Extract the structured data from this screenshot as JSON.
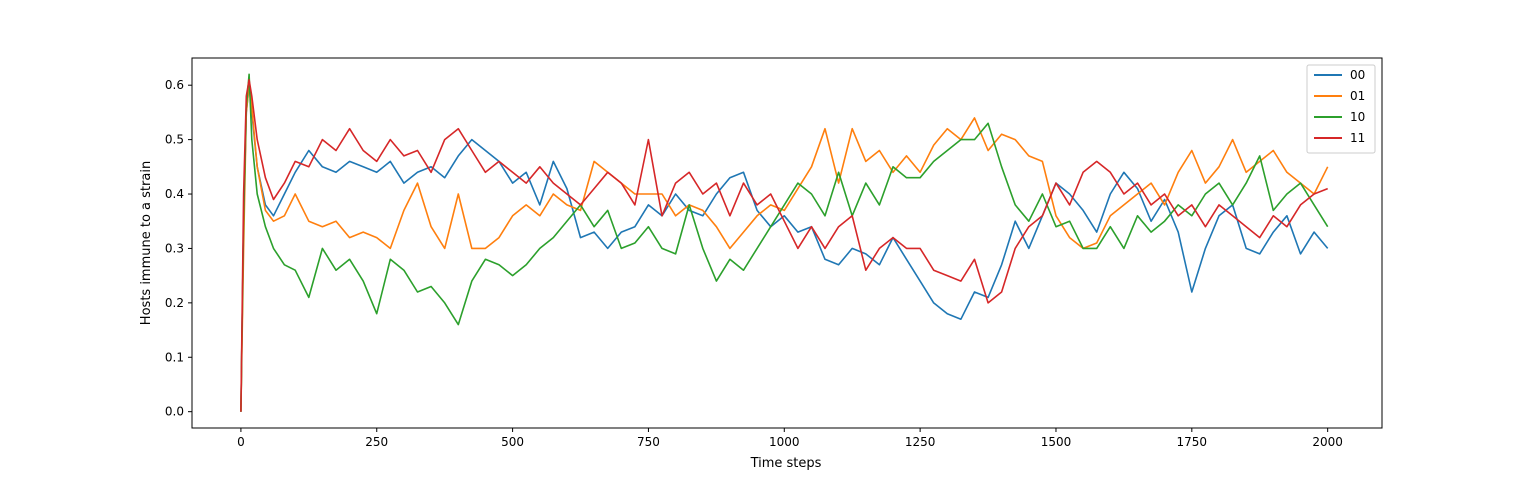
{
  "chart_data": {
    "type": "line",
    "title": "",
    "xlabel": "Time steps",
    "ylabel": "Hosts immune to a strain",
    "xlim": [
      -90,
      2100
    ],
    "ylim": [
      -0.03,
      0.65
    ],
    "xticks": [
      0,
      250,
      500,
      750,
      1000,
      1250,
      1500,
      1750,
      2000
    ],
    "yticks": [
      0.0,
      0.1,
      0.2,
      0.3,
      0.4,
      0.5,
      0.6
    ],
    "xtick_labels": [
      "0",
      "250",
      "500",
      "750",
      "1000",
      "1250",
      "1500",
      "1750",
      "2000"
    ],
    "ytick_labels": [
      "0.0",
      "0.1",
      "0.2",
      "0.3",
      "0.4",
      "0.5",
      "0.6"
    ],
    "grid": false,
    "legend_position": "top-right",
    "series": [
      {
        "name": "00",
        "color": "#1f77b4",
        "x": [
          0,
          5,
          10,
          15,
          20,
          30,
          45,
          60,
          80,
          100,
          125,
          150,
          175,
          200,
          225,
          250,
          275,
          300,
          325,
          350,
          375,
          400,
          425,
          450,
          475,
          500,
          525,
          550,
          575,
          600,
          625,
          650,
          675,
          700,
          725,
          750,
          775,
          800,
          825,
          850,
          875,
          900,
          925,
          950,
          975,
          1000,
          1025,
          1050,
          1075,
          1100,
          1125,
          1150,
          1175,
          1200,
          1225,
          1250,
          1275,
          1300,
          1325,
          1350,
          1375,
          1400,
          1425,
          1450,
          1475,
          1500,
          1525,
          1550,
          1575,
          1600,
          1625,
          1650,
          1675,
          1700,
          1725,
          1750,
          1775,
          1800,
          1825,
          1850,
          1875,
          1900,
          1925,
          1950,
          1975,
          2000
        ],
        "y": [
          0.0,
          0.35,
          0.55,
          0.6,
          0.55,
          0.45,
          0.38,
          0.36,
          0.4,
          0.44,
          0.48,
          0.45,
          0.44,
          0.46,
          0.45,
          0.44,
          0.46,
          0.42,
          0.44,
          0.45,
          0.43,
          0.47,
          0.5,
          0.48,
          0.46,
          0.42,
          0.44,
          0.38,
          0.46,
          0.41,
          0.32,
          0.33,
          0.3,
          0.33,
          0.34,
          0.38,
          0.36,
          0.4,
          0.37,
          0.36,
          0.4,
          0.43,
          0.44,
          0.37,
          0.34,
          0.36,
          0.33,
          0.34,
          0.28,
          0.27,
          0.3,
          0.29,
          0.27,
          0.32,
          0.28,
          0.24,
          0.2,
          0.18,
          0.17,
          0.22,
          0.21,
          0.27,
          0.35,
          0.3,
          0.36,
          0.42,
          0.4,
          0.37,
          0.33,
          0.4,
          0.44,
          0.41,
          0.35,
          0.39,
          0.33,
          0.22,
          0.3,
          0.36,
          0.38,
          0.3,
          0.29,
          0.33,
          0.36,
          0.29,
          0.33,
          0.3
        ]
      },
      {
        "name": "01",
        "color": "#ff7f0e",
        "x": [
          0,
          5,
          10,
          15,
          20,
          30,
          45,
          60,
          80,
          100,
          125,
          150,
          175,
          200,
          225,
          250,
          275,
          300,
          325,
          350,
          375,
          400,
          425,
          450,
          475,
          500,
          525,
          550,
          575,
          600,
          625,
          650,
          675,
          700,
          725,
          750,
          775,
          800,
          825,
          850,
          875,
          900,
          925,
          950,
          975,
          1000,
          1025,
          1050,
          1075,
          1100,
          1125,
          1150,
          1175,
          1200,
          1225,
          1250,
          1275,
          1300,
          1325,
          1350,
          1375,
          1400,
          1425,
          1450,
          1475,
          1500,
          1525,
          1550,
          1575,
          1600,
          1625,
          1650,
          1675,
          1700,
          1725,
          1750,
          1775,
          1800,
          1825,
          1850,
          1875,
          1900,
          1925,
          1950,
          1975,
          2000
        ],
        "y": [
          0.0,
          0.3,
          0.55,
          0.6,
          0.56,
          0.45,
          0.37,
          0.35,
          0.36,
          0.4,
          0.35,
          0.34,
          0.35,
          0.32,
          0.33,
          0.32,
          0.3,
          0.37,
          0.42,
          0.34,
          0.3,
          0.4,
          0.3,
          0.3,
          0.32,
          0.36,
          0.38,
          0.36,
          0.4,
          0.38,
          0.37,
          0.46,
          0.44,
          0.42,
          0.4,
          0.4,
          0.4,
          0.36,
          0.38,
          0.37,
          0.34,
          0.3,
          0.33,
          0.36,
          0.38,
          0.37,
          0.41,
          0.45,
          0.52,
          0.42,
          0.52,
          0.46,
          0.48,
          0.44,
          0.47,
          0.44,
          0.49,
          0.52,
          0.5,
          0.54,
          0.48,
          0.51,
          0.5,
          0.47,
          0.46,
          0.36,
          0.32,
          0.3,
          0.31,
          0.36,
          0.38,
          0.4,
          0.42,
          0.38,
          0.44,
          0.48,
          0.42,
          0.45,
          0.5,
          0.44,
          0.46,
          0.48,
          0.44,
          0.42,
          0.4,
          0.45
        ]
      },
      {
        "name": "10",
        "color": "#2ca02c",
        "x": [
          0,
          5,
          10,
          15,
          20,
          30,
          45,
          60,
          80,
          100,
          125,
          150,
          175,
          200,
          225,
          250,
          275,
          300,
          325,
          350,
          375,
          400,
          425,
          450,
          475,
          500,
          525,
          550,
          575,
          600,
          625,
          650,
          675,
          700,
          725,
          750,
          775,
          800,
          825,
          850,
          875,
          900,
          925,
          950,
          975,
          1000,
          1025,
          1050,
          1075,
          1100,
          1125,
          1150,
          1175,
          1200,
          1225,
          1250,
          1275,
          1300,
          1325,
          1350,
          1375,
          1400,
          1425,
          1450,
          1475,
          1500,
          1525,
          1550,
          1575,
          1600,
          1625,
          1650,
          1675,
          1700,
          1725,
          1750,
          1775,
          1800,
          1825,
          1850,
          1875,
          1900,
          1925,
          1950,
          1975,
          2000
        ],
        "y": [
          0.0,
          0.35,
          0.56,
          0.62,
          0.5,
          0.4,
          0.34,
          0.3,
          0.27,
          0.26,
          0.21,
          0.3,
          0.26,
          0.28,
          0.24,
          0.18,
          0.28,
          0.26,
          0.22,
          0.23,
          0.2,
          0.16,
          0.24,
          0.28,
          0.27,
          0.25,
          0.27,
          0.3,
          0.32,
          0.35,
          0.38,
          0.34,
          0.37,
          0.3,
          0.31,
          0.34,
          0.3,
          0.29,
          0.38,
          0.3,
          0.24,
          0.28,
          0.26,
          0.3,
          0.34,
          0.38,
          0.42,
          0.4,
          0.36,
          0.44,
          0.36,
          0.42,
          0.38,
          0.45,
          0.43,
          0.43,
          0.46,
          0.48,
          0.5,
          0.5,
          0.53,
          0.45,
          0.38,
          0.35,
          0.4,
          0.34,
          0.35,
          0.3,
          0.3,
          0.34,
          0.3,
          0.36,
          0.33,
          0.35,
          0.38,
          0.36,
          0.4,
          0.42,
          0.38,
          0.42,
          0.47,
          0.37,
          0.4,
          0.42,
          0.38,
          0.34
        ]
      },
      {
        "name": "11",
        "color": "#d62728",
        "x": [
          0,
          5,
          10,
          15,
          20,
          30,
          45,
          60,
          80,
          100,
          125,
          150,
          175,
          200,
          225,
          250,
          275,
          300,
          325,
          350,
          375,
          400,
          425,
          450,
          475,
          500,
          525,
          550,
          575,
          600,
          625,
          650,
          675,
          700,
          725,
          750,
          775,
          800,
          825,
          850,
          875,
          900,
          925,
          950,
          975,
          1000,
          1025,
          1050,
          1075,
          1100,
          1125,
          1150,
          1175,
          1200,
          1225,
          1250,
          1275,
          1300,
          1325,
          1350,
          1375,
          1400,
          1425,
          1450,
          1475,
          1500,
          1525,
          1550,
          1575,
          1600,
          1625,
          1650,
          1675,
          1700,
          1725,
          1750,
          1775,
          1800,
          1825,
          1850,
          1875,
          1900,
          1925,
          1950,
          1975,
          2000
        ],
        "y": [
          0.0,
          0.4,
          0.58,
          0.61,
          0.58,
          0.5,
          0.43,
          0.39,
          0.42,
          0.46,
          0.45,
          0.5,
          0.48,
          0.52,
          0.48,
          0.46,
          0.5,
          0.47,
          0.48,
          0.44,
          0.5,
          0.52,
          0.48,
          0.44,
          0.46,
          0.44,
          0.42,
          0.45,
          0.42,
          0.4,
          0.38,
          0.41,
          0.44,
          0.42,
          0.38,
          0.5,
          0.36,
          0.42,
          0.44,
          0.4,
          0.42,
          0.36,
          0.42,
          0.38,
          0.4,
          0.35,
          0.3,
          0.34,
          0.3,
          0.34,
          0.36,
          0.26,
          0.3,
          0.32,
          0.3,
          0.3,
          0.26,
          0.25,
          0.24,
          0.28,
          0.2,
          0.22,
          0.3,
          0.34,
          0.36,
          0.42,
          0.38,
          0.44,
          0.46,
          0.44,
          0.4,
          0.42,
          0.38,
          0.4,
          0.36,
          0.38,
          0.34,
          0.38,
          0.36,
          0.34,
          0.32,
          0.36,
          0.34,
          0.38,
          0.4,
          0.41
        ]
      }
    ]
  }
}
